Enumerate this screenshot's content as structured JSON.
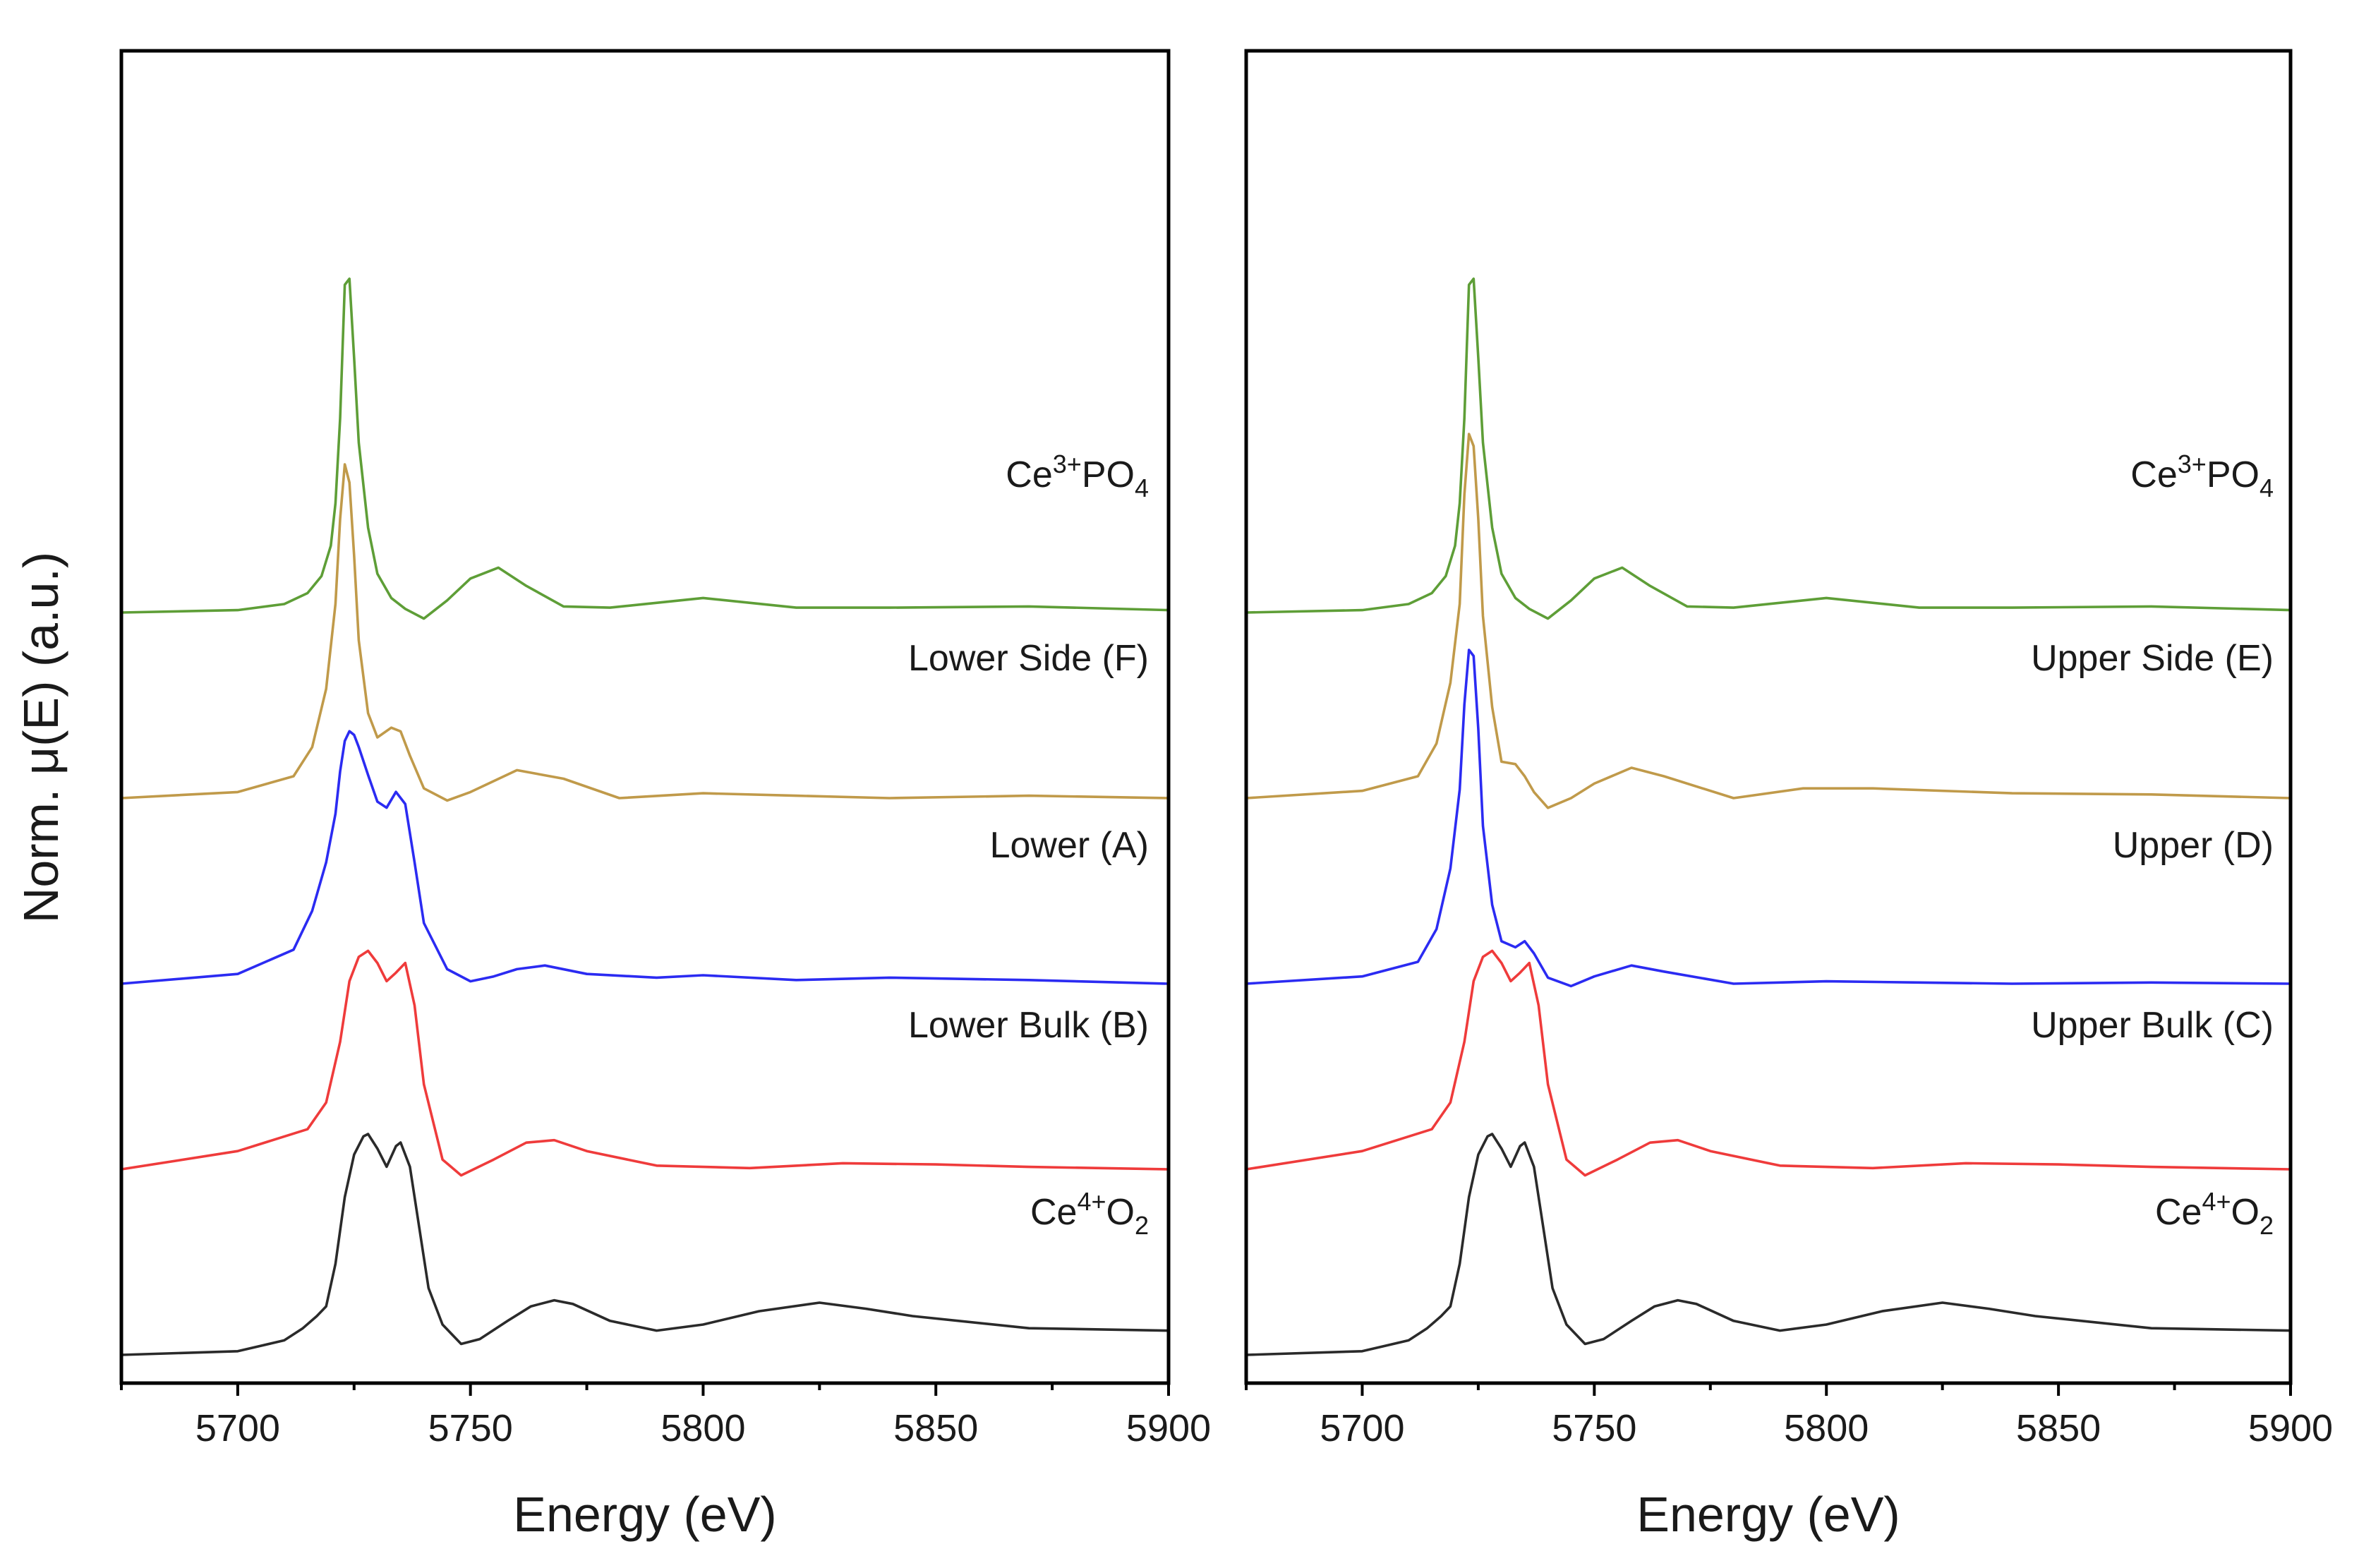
{
  "chart_data": [
    {
      "type": "line",
      "xlabel": "Energy (eV)",
      "ylabel": "Norm. μ(E) (a.u.)",
      "xlim": [
        5675,
        5900
      ],
      "x_ticks": [
        "5700",
        "5750",
        "5800",
        "5850",
        "5900"
      ],
      "y_ticks": [],
      "legend": "inline labels at right of each trace",
      "grid": false,
      "series": [
        {
          "name": "Ce3+PO4",
          "label_main": "Ce",
          "label_sup": "3+",
          "label_mid": "PO",
          "label_sub": "4",
          "color": "#5e9e37",
          "offset": 4,
          "x": [
            5675,
            5700,
            5710,
            5715,
            5718,
            5720,
            5721,
            5722,
            5723,
            5724,
            5725,
            5726,
            5728,
            5730,
            5733,
            5736,
            5740,
            5745,
            5750,
            5756,
            5762,
            5770,
            5780,
            5800,
            5820,
            5840,
            5870,
            5900
          ],
          "y": [
            0.0,
            0.02,
            0.07,
            0.16,
            0.3,
            0.55,
            0.9,
            1.6,
            2.7,
            2.75,
            2.1,
            1.4,
            0.7,
            0.32,
            0.12,
            0.03,
            -0.05,
            0.1,
            0.28,
            0.37,
            0.22,
            0.05,
            0.04,
            0.12,
            0.04,
            0.04,
            0.05,
            0.02
          ]
        },
        {
          "name": "Lower Side (F)",
          "color": "#c09a4a",
          "offset": 3,
          "x": [
            5675,
            5700,
            5712,
            5716,
            5719,
            5721,
            5722,
            5723,
            5724,
            5725,
            5726,
            5728,
            5730,
            5733,
            5735,
            5737,
            5740,
            5745,
            5750,
            5760,
            5770,
            5782,
            5800,
            5820,
            5840,
            5870,
            5900
          ],
          "y": [
            0.0,
            0.05,
            0.18,
            0.42,
            0.9,
            1.6,
            2.3,
            2.75,
            2.6,
            2.0,
            1.3,
            0.7,
            0.5,
            0.58,
            0.55,
            0.35,
            0.08,
            -0.02,
            0.05,
            0.23,
            0.16,
            0.0,
            0.04,
            0.02,
            0.0,
            0.02,
            0.0
          ]
        },
        {
          "name": "Lower (A)",
          "color": "#2b2bf2",
          "offset": 2,
          "x": [
            5675,
            5700,
            5712,
            5716,
            5719,
            5721,
            5722,
            5723,
            5724,
            5725,
            5726,
            5728,
            5730,
            5732,
            5734,
            5736,
            5738,
            5740,
            5745,
            5750,
            5755,
            5760,
            5766,
            5775,
            5790,
            5800,
            5820,
            5840,
            5870,
            5900
          ],
          "y": [
            0.0,
            0.08,
            0.28,
            0.6,
            1.0,
            1.4,
            1.75,
            2.0,
            2.08,
            2.05,
            1.95,
            1.72,
            1.5,
            1.45,
            1.58,
            1.48,
            1.0,
            0.5,
            0.12,
            0.02,
            0.06,
            0.12,
            0.15,
            0.08,
            0.05,
            0.07,
            0.03,
            0.05,
            0.03,
            0.0
          ]
        },
        {
          "name": "Lower Bulk (B)",
          "color": "#ef3b3b",
          "offset": 1,
          "x": [
            5675,
            5700,
            5715,
            5719,
            5722,
            5724,
            5726,
            5728,
            5730,
            5732,
            5734,
            5736,
            5738,
            5740,
            5744,
            5748,
            5755,
            5762,
            5768,
            5775,
            5790,
            5810,
            5830,
            5850,
            5870,
            5900
          ],
          "y": [
            0.0,
            0.15,
            0.33,
            0.55,
            1.05,
            1.55,
            1.75,
            1.8,
            1.7,
            1.55,
            1.62,
            1.7,
            1.35,
            0.7,
            0.08,
            -0.05,
            0.08,
            0.22,
            0.24,
            0.15,
            0.03,
            0.01,
            0.05,
            0.04,
            0.02,
            0.0
          ]
        },
        {
          "name": "Ce4+O2",
          "label_main": "Ce",
          "label_sup": "4+",
          "label_mid": "O",
          "label_sub": "2",
          "color": "#2a2a2a",
          "offset": 0,
          "x": [
            5675,
            5700,
            5710,
            5714,
            5717,
            5719,
            5721,
            5723,
            5725,
            5727,
            5728,
            5730,
            5732,
            5734,
            5735,
            5737,
            5739,
            5741,
            5744,
            5748,
            5752,
            5758,
            5763,
            5768,
            5772,
            5780,
            5790,
            5800,
            5812,
            5825,
            5835,
            5845,
            5870,
            5900
          ],
          "y": [
            0.0,
            0.03,
            0.12,
            0.22,
            0.32,
            0.4,
            0.75,
            1.3,
            1.65,
            1.8,
            1.82,
            1.7,
            1.55,
            1.72,
            1.75,
            1.55,
            1.05,
            0.55,
            0.25,
            0.09,
            0.13,
            0.28,
            0.4,
            0.45,
            0.42,
            0.28,
            0.2,
            0.25,
            0.36,
            0.43,
            0.38,
            0.32,
            0.22,
            0.2
          ]
        }
      ],
      "panel_series_order_note": "top to bottom as drawn"
    },
    {
      "type": "line",
      "xlabel": "Energy (eV)",
      "xlim": [
        5675,
        5900
      ],
      "x_ticks": [
        "5700",
        "5750",
        "5800",
        "5850",
        "5900"
      ],
      "y_ticks": [],
      "legend": "inline labels at right of each trace",
      "grid": false,
      "series": [
        {
          "name": "Ce3+PO4",
          "label_main": "Ce",
          "label_sup": "3+",
          "label_mid": "PO",
          "label_sub": "4",
          "color": "#5e9e37",
          "offset": 4,
          "x": [
            5675,
            5700,
            5710,
            5715,
            5718,
            5720,
            5721,
            5722,
            5723,
            5724,
            5725,
            5726,
            5728,
            5730,
            5733,
            5736,
            5740,
            5745,
            5750,
            5756,
            5762,
            5770,
            5780,
            5800,
            5820,
            5840,
            5870,
            5900
          ],
          "y": [
            0.0,
            0.02,
            0.07,
            0.16,
            0.3,
            0.55,
            0.9,
            1.6,
            2.7,
            2.75,
            2.1,
            1.4,
            0.7,
            0.32,
            0.12,
            0.03,
            -0.05,
            0.1,
            0.28,
            0.37,
            0.22,
            0.05,
            0.04,
            0.12,
            0.04,
            0.04,
            0.05,
            0.02
          ]
        },
        {
          "name": "Upper Side (E)",
          "color": "#c09a4a",
          "offset": 3,
          "x": [
            5675,
            5700,
            5712,
            5716,
            5719,
            5721,
            5722,
            5723,
            5724,
            5725,
            5726,
            5728,
            5730,
            5733,
            5735,
            5737,
            5740,
            5745,
            5750,
            5758,
            5765,
            5780,
            5795,
            5810,
            5840,
            5870,
            5900
          ],
          "y": [
            0.0,
            0.06,
            0.18,
            0.45,
            0.95,
            1.6,
            2.5,
            3.0,
            2.9,
            2.3,
            1.5,
            0.75,
            0.3,
            0.28,
            0.18,
            0.05,
            -0.08,
            0.0,
            0.12,
            0.25,
            0.18,
            0.0,
            0.08,
            0.08,
            0.04,
            0.03,
            0.0
          ]
        },
        {
          "name": "Upper (D)",
          "color": "#2b2bf2",
          "offset": 2,
          "x": [
            5675,
            5700,
            5712,
            5716,
            5719,
            5721,
            5722,
            5723,
            5724,
            5725,
            5726,
            5728,
            5730,
            5733,
            5735,
            5737,
            5740,
            5745,
            5750,
            5758,
            5765,
            5780,
            5800,
            5820,
            5840,
            5870,
            5900
          ],
          "y": [
            0.0,
            0.06,
            0.18,
            0.45,
            0.95,
            1.6,
            2.3,
            2.75,
            2.7,
            2.1,
            1.3,
            0.65,
            0.35,
            0.3,
            0.35,
            0.25,
            0.05,
            -0.02,
            0.06,
            0.15,
            0.1,
            0.0,
            0.02,
            0.01,
            0.0,
            0.01,
            0.0
          ]
        },
        {
          "name": "Upper Bulk (C)",
          "color": "#ef3b3b",
          "offset": 1,
          "x": [
            5675,
            5700,
            5715,
            5719,
            5722,
            5724,
            5726,
            5728,
            5730,
            5732,
            5734,
            5736,
            5738,
            5740,
            5744,
            5748,
            5755,
            5762,
            5768,
            5775,
            5790,
            5810,
            5830,
            5850,
            5870,
            5900
          ],
          "y": [
            0.0,
            0.15,
            0.33,
            0.55,
            1.05,
            1.55,
            1.75,
            1.8,
            1.7,
            1.55,
            1.62,
            1.7,
            1.35,
            0.7,
            0.08,
            -0.05,
            0.08,
            0.22,
            0.24,
            0.15,
            0.03,
            0.01,
            0.05,
            0.04,
            0.02,
            0.0
          ]
        },
        {
          "name": "Ce4+O2",
          "label_main": "Ce",
          "label_sup": "4+",
          "label_mid": "O",
          "label_sub": "2",
          "color": "#2a2a2a",
          "offset": 0,
          "x": [
            5675,
            5700,
            5710,
            5714,
            5717,
            5719,
            5721,
            5723,
            5725,
            5727,
            5728,
            5730,
            5732,
            5734,
            5735,
            5737,
            5739,
            5741,
            5744,
            5748,
            5752,
            5758,
            5763,
            5768,
            5772,
            5780,
            5790,
            5800,
            5812,
            5825,
            5835,
            5845,
            5870,
            5900
          ],
          "y": [
            0.0,
            0.03,
            0.12,
            0.22,
            0.32,
            0.4,
            0.75,
            1.3,
            1.65,
            1.8,
            1.82,
            1.7,
            1.55,
            1.72,
            1.75,
            1.55,
            1.05,
            0.55,
            0.25,
            0.09,
            0.13,
            0.28,
            0.4,
            0.45,
            0.42,
            0.28,
            0.2,
            0.25,
            0.36,
            0.43,
            0.38,
            0.32,
            0.22,
            0.2
          ]
        }
      ]
    }
  ]
}
